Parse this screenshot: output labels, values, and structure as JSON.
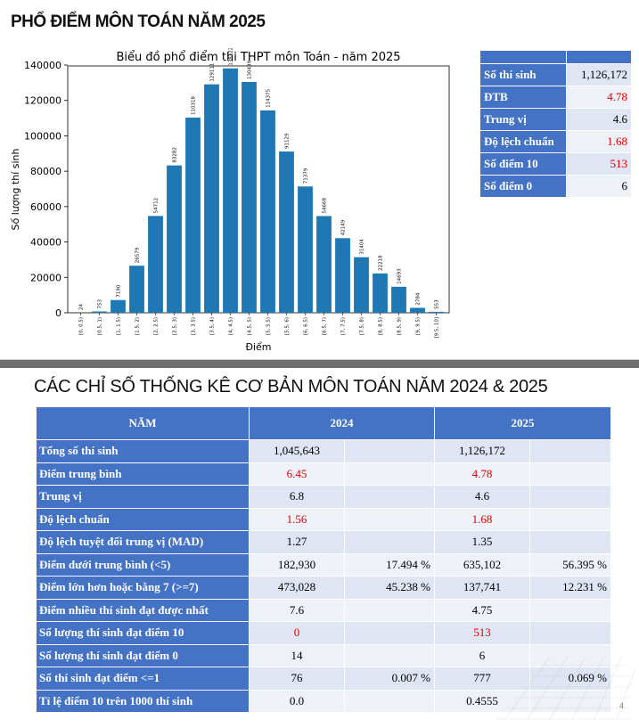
{
  "slide1": {
    "title": "PHỔ ĐIỂM MÔN TOÁN NĂM 2025",
    "stats": [
      {
        "label": "Số thí sinh",
        "value": "1,126,172",
        "red": false
      },
      {
        "label": "ĐTB",
        "value": "4.78",
        "red": true
      },
      {
        "label": "Trung vị",
        "value": "4.6",
        "red": false
      },
      {
        "label": "Độ lệch chuẩn",
        "value": "1.68",
        "red": true
      },
      {
        "label": "Số điểm 10",
        "value": "513",
        "red": true
      },
      {
        "label": "Số điểm 0",
        "value": "6",
        "red": false
      }
    ]
  },
  "chart_data": {
    "type": "bar",
    "title": "Biểu đồ phổ điểm thi THPT môn Toán - năm 2025",
    "xlabel": "Điểm",
    "ylabel": "Số lượng thí sinh",
    "ylim": [
      0,
      150000
    ],
    "yticks": [
      "0",
      "20000",
      "40000",
      "60000",
      "80000",
      "100000",
      "120000",
      "140000"
    ],
    "color": "#1f77b4",
    "categories": [
      "[0, 0.5)",
      "[0.5, 1)",
      "[1, 1.5)",
      "[1.5, 2)",
      "[2, 2.5)",
      "[2.5, 3)",
      "[3, 3.5)",
      "[3.5, 4)",
      "[4, 4.5)",
      "[4.5, 5)",
      "[5, 5.5)",
      "[5.5, 6)",
      "[6, 6.5)",
      "[6.5, 7)",
      "[7, 7.5)",
      "[7.5, 8)",
      "[8, 8.5)",
      "[8.5, 9)",
      "[9, 9.5)",
      "[9.5, 10]"
    ],
    "values": [
      24,
      753,
      7190,
      26579,
      54712,
      83282,
      110318,
      129111,
      138122,
      130439,
      114375,
      91129,
      71379,
      54668,
      42149,
      31404,
      22218,
      14693,
      2784,
      553
    ]
  },
  "slide2": {
    "title": "CÁC CHỈ SỐ THỐNG KÊ CƠ BẢN MÔN TOÁN NĂM 2024 & 2025",
    "headers": [
      "NĂM",
      "2024",
      "2025"
    ],
    "rows": [
      {
        "label": "Tổng số thí sinh",
        "v24": "1,045,643",
        "p24": "",
        "v25": "1,126,172",
        "p25": "",
        "red24": false,
        "red25": false
      },
      {
        "label": "Điểm trung bình",
        "v24": "6.45",
        "p24": "",
        "v25": "4.78",
        "p25": "",
        "red24": true,
        "red25": true
      },
      {
        "label": "Trung vị",
        "v24": "6.8",
        "p24": "",
        "v25": "4.6",
        "p25": "",
        "red24": false,
        "red25": false
      },
      {
        "label": "Độ lệch chuẩn",
        "v24": "1.56",
        "p24": "",
        "v25": "1.68",
        "p25": "",
        "red24": true,
        "red25": true
      },
      {
        "label": "Độ lệch tuyệt đối trung vị (MAD)",
        "v24": "1.27",
        "p24": "",
        "v25": "1.35",
        "p25": "",
        "red24": false,
        "red25": false
      },
      {
        "label": "Điểm dưới trung bình (<5)",
        "v24": "182,930",
        "p24": "17.494 %",
        "v25": "635,102",
        "p25": "56.395 %",
        "red24": false,
        "red25": false
      },
      {
        "label": "Điểm lớn hơn hoặc bằng 7 (>=7)",
        "v24": "473,028",
        "p24": "45.238 %",
        "v25": "137,741",
        "p25": "12.231 %",
        "red24": false,
        "red25": false
      },
      {
        "label": "Điểm nhiều thí sinh đạt được nhất",
        "v24": "7.6",
        "p24": "",
        "v25": "4.75",
        "p25": "",
        "red24": false,
        "red25": false
      },
      {
        "label": "Số lượng thí sinh đạt điểm 10",
        "v24": "0",
        "p24": "",
        "v25": "513",
        "p25": "",
        "red24": true,
        "red25": true
      },
      {
        "label": "Số lượng thí sinh đạt điểm 0",
        "v24": "14",
        "p24": "",
        "v25": "6",
        "p25": "",
        "red24": false,
        "red25": false
      },
      {
        "label": "Số thí sinh đạt điểm <=1",
        "v24": "76",
        "p24": "0.007 %",
        "v25": "777",
        "p25": "0.069 %",
        "red24": false,
        "red25": false
      },
      {
        "label": "Tỉ lệ điểm 10 trên 1000 thí sinh",
        "v24": "0.0",
        "p24": "",
        "v25": "0.4555",
        "p25": "",
        "red24": false,
        "red25": false
      }
    ],
    "page_number": "4"
  }
}
